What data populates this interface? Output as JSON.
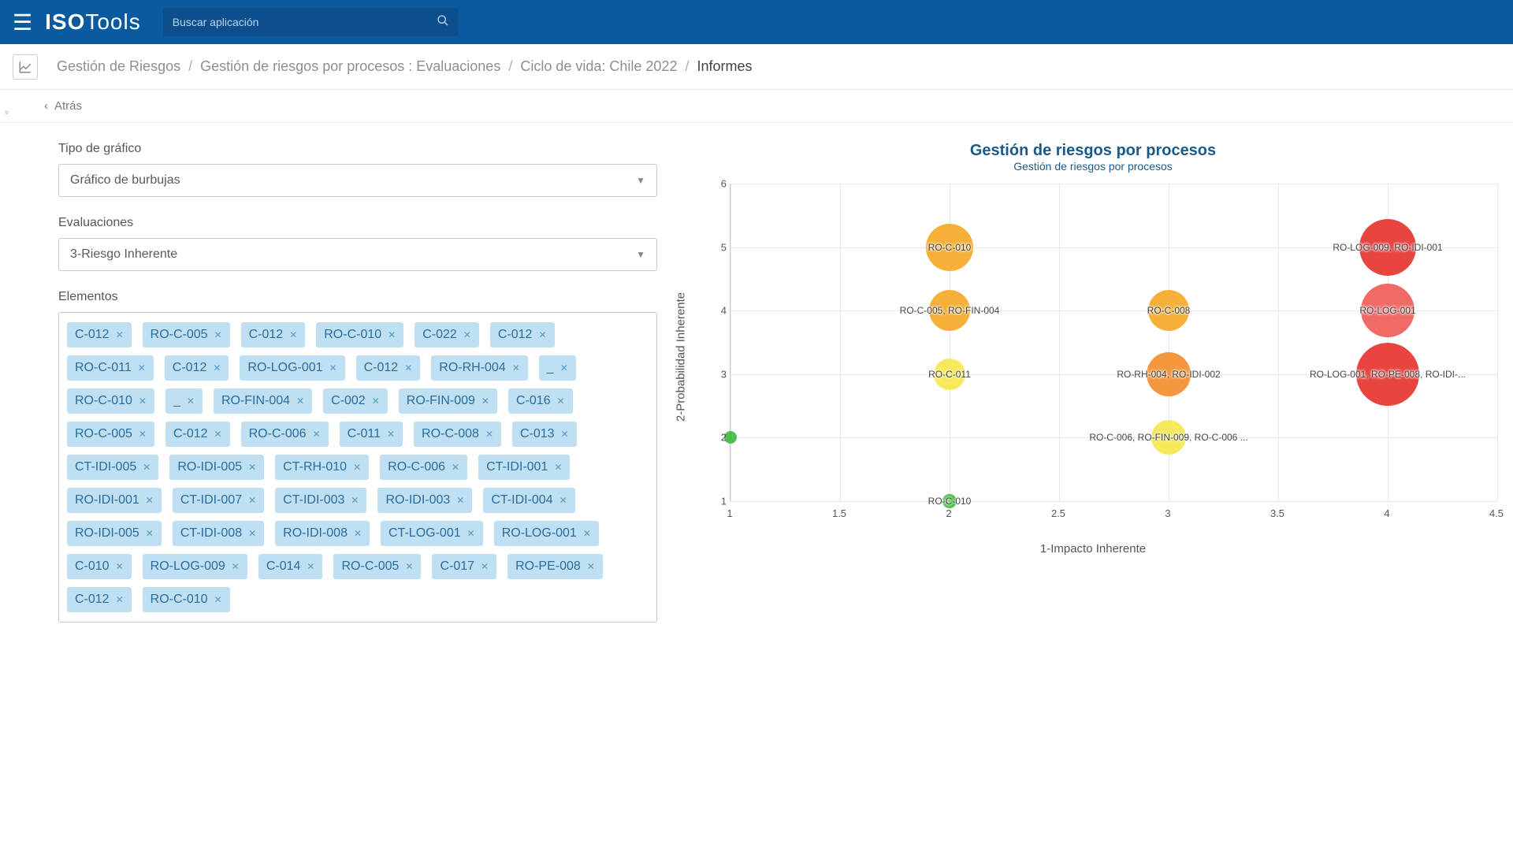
{
  "header": {
    "logo_a": "ISO",
    "logo_b": "Tools",
    "search_placeholder": "Buscar aplicación"
  },
  "breadcrumb": {
    "items": [
      "Gestión de Riesgos",
      "Gestión de riesgos por procesos : Evaluaciones",
      "Ciclo de vida: Chile 2022",
      "Informes"
    ]
  },
  "toolbar": {
    "back": "Atrás"
  },
  "form": {
    "chart_type_label": "Tipo de gráfico",
    "chart_type_value": "Gráfico de burbujas",
    "evaluations_label": "Evaluaciones",
    "evaluations_value": "3-Riesgo Inherente",
    "elements_label": "Elementos"
  },
  "tags": [
    "C-012",
    "RO-C-005",
    "C-012",
    "RO-C-010",
    "C-022",
    "C-012",
    "RO-C-011",
    "C-012",
    "RO-LOG-001",
    "C-012",
    "RO-RH-004",
    "_",
    "RO-C-010",
    "_",
    "RO-FIN-004",
    "C-002",
    "RO-FIN-009",
    "C-016",
    "RO-C-005",
    "C-012",
    "RO-C-006",
    "C-011",
    "RO-C-008",
    "C-013",
    "CT-IDI-005",
    "RO-IDI-005",
    "CT-RH-010",
    "RO-C-006",
    "CT-IDI-001",
    "RO-IDI-001",
    "CT-IDI-007",
    "CT-IDI-003",
    "RO-IDI-003",
    "CT-IDI-004",
    "RO-IDI-005",
    "CT-IDI-008",
    "RO-IDI-008",
    "CT-LOG-001",
    "RO-LOG-001",
    "C-010",
    "RO-LOG-009",
    "C-014",
    "RO-C-005",
    "C-017",
    "RO-PE-008",
    "C-012",
    "RO-C-010"
  ],
  "chart": {
    "type": "bubble",
    "title": "Gestión de riesgos por procesos",
    "subtitle": "Gestión de riesgos por procesos",
    "xlabel": "1-Impacto Inherente",
    "ylabel": "2-Probabilidad Inherente",
    "xlim": [
      1,
      4.5
    ],
    "ylim": [
      1,
      6
    ],
    "xticks": [
      1,
      1.5,
      2,
      2.5,
      3,
      3.5,
      4,
      4.5
    ],
    "yticks": [
      1,
      2,
      3,
      4,
      5,
      6
    ],
    "grid_color": "#e8e8e8",
    "background_color": "#ffffff",
    "bubbles": [
      {
        "x": 1,
        "y": 2,
        "r": 8,
        "color": "#3cb93c",
        "label": ""
      },
      {
        "x": 2,
        "y": 1,
        "r": 9,
        "color": "#3cb93c",
        "label": "RO-C-010"
      },
      {
        "x": 2,
        "y": 3,
        "r": 20,
        "color": "#f5e84a",
        "label": "RO-C-011"
      },
      {
        "x": 2,
        "y": 4,
        "r": 26,
        "color": "#f5a623",
        "label": "RO-C-005, RO-FIN-004"
      },
      {
        "x": 2,
        "y": 5,
        "r": 30,
        "color": "#f5a623",
        "label": "RO-C-010"
      },
      {
        "x": 3,
        "y": 2,
        "r": 22,
        "color": "#f5e84a",
        "label": "RO-C-006, RO-FIN-009, RO-C-006 ..."
      },
      {
        "x": 3,
        "y": 3,
        "r": 28,
        "color": "#f48c2a",
        "label": "RO-RH-004, RO-IDI-002"
      },
      {
        "x": 3,
        "y": 4,
        "r": 26,
        "color": "#f5a623",
        "label": "RO-C-008"
      },
      {
        "x": 4,
        "y": 3,
        "r": 40,
        "color": "#e5312c",
        "label": "RO-LOG-001, RO-PE-008, RO-IDI-..."
      },
      {
        "x": 4,
        "y": 4,
        "r": 34,
        "color": "#ef5a55",
        "label": "RO-LOG-001"
      },
      {
        "x": 4,
        "y": 5,
        "r": 36,
        "color": "#e5312c",
        "label": "RO-LOG-009, RO-IDI-001"
      }
    ]
  }
}
